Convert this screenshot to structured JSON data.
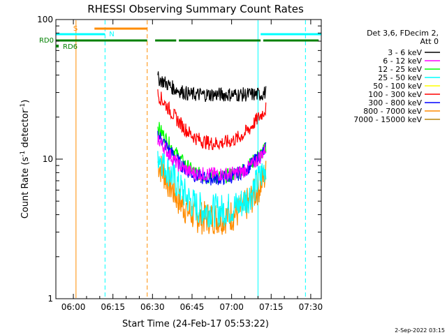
{
  "chart_data": {
    "type": "line",
    "title": "RHESSI Observing Summary Count Rates",
    "xlabel": "Start Time (24-Feb-17 05:53:22)",
    "ylabel_main": "Count Rate (s",
    "ylabel_sup1": "-1",
    "ylabel_mid": " detector",
    "ylabel_sup2": "-1",
    "ylabel_end": ")",
    "xlim": [
      "05:53:22",
      "07:34:00"
    ],
    "x_ticks": [
      "06:00",
      "06:15",
      "06:30",
      "06:45",
      "07:00",
      "07:15",
      "07:30"
    ],
    "y_scale": "log",
    "ylim": [
      1,
      100
    ],
    "y_ticks": [
      "1",
      "10",
      "100"
    ],
    "legend_header": [
      "Det 3,6, FDecim 2,",
      "Att 0"
    ],
    "series": [
      {
        "name": "3 - 6 keV",
        "color": "#000000",
        "start": "06:32",
        "end": "07:13",
        "values": [
          38,
          36,
          34,
          32,
          31,
          30,
          29,
          29,
          29,
          29,
          29,
          29,
          29,
          29,
          29,
          29,
          29,
          29,
          29,
          29,
          30
        ]
      },
      {
        "name": "6 - 12 keV",
        "color": "#ff00ff",
        "start": "06:32",
        "end": "07:13",
        "values": [
          14,
          12.5,
          11,
          9.8,
          9,
          8.5,
          8.1,
          7.9,
          7.8,
          7.8,
          7.8,
          7.8,
          7.8,
          7.8,
          7.9,
          8,
          8.3,
          8.8,
          9.5,
          10.5,
          12
        ]
      },
      {
        "name": "12 - 25 keV",
        "color": "#00ff00",
        "start": "06:32",
        "end": "07:13",
        "values": [
          17,
          15,
          13,
          11.5,
          10.2,
          9.2,
          8.5,
          8,
          7.7,
          7.5,
          7.5,
          7.5,
          7.5,
          7.6,
          7.8,
          8.1,
          8.5,
          9.1,
          9.9,
          10.8,
          12
        ]
      },
      {
        "name": "25 - 50 keV",
        "color": "#00ffff",
        "start": "06:32",
        "end": "07:13",
        "values": [
          11,
          9.5,
          8.3,
          7.2,
          6.3,
          5.6,
          5,
          4.6,
          4.4,
          4.3,
          4.3,
          4.3,
          4.3,
          4.4,
          4.5,
          4.7,
          5,
          5.5,
          6.3,
          7.5,
          9
        ]
      },
      {
        "name": "50 - 100 keV",
        "color": "#ffff00",
        "start": "06:32",
        "end": "07:13",
        "values": []
      },
      {
        "name": "100 - 300 keV",
        "color": "#ff0000",
        "start": "06:32",
        "end": "07:13",
        "values": [
          29,
          26,
          23,
          20.5,
          18.3,
          16.5,
          15.2,
          14.2,
          13.6,
          13.2,
          13,
          13,
          13.1,
          13.3,
          13.7,
          14.3,
          15.2,
          16.5,
          18.5,
          20.5,
          23
        ]
      },
      {
        "name": "300 - 800 keV",
        "color": "#0000ff",
        "start": "06:32",
        "end": "07:13",
        "values": [
          15,
          13.3,
          11.8,
          10.5,
          9.4,
          8.6,
          8,
          7.6,
          7.4,
          7.3,
          7.3,
          7.3,
          7.3,
          7.4,
          7.6,
          7.9,
          8.3,
          8.9,
          9.7,
          10.6,
          11.8
        ]
      },
      {
        "name": "800 - 7000 keV",
        "color": "#ff8c00",
        "start": "06:32",
        "end": "07:13",
        "values": [
          9.5,
          8,
          6.8,
          5.8,
          5,
          4.5,
          4.1,
          3.9,
          3.8,
          3.8,
          3.8,
          3.8,
          3.8,
          3.9,
          4,
          4.2,
          4.5,
          5,
          5.7,
          6.6,
          7.8
        ]
      },
      {
        "name": "7000 - 15000 keV",
        "color": "#b8860b",
        "start": "06:32",
        "end": "07:13",
        "values": []
      }
    ],
    "flags": [
      {
        "label": "S",
        "color": "#ff8c00",
        "segments": [
          [
            "06:08",
            "06:28"
          ]
        ]
      },
      {
        "label": "N",
        "color": "#00ffff",
        "segments": [
          [
            "05:53:22",
            "06:12"
          ],
          [
            "07:11",
            "07:34"
          ]
        ]
      },
      {
        "label": "RD0",
        "color": "#008000",
        "segments": [
          [
            "05:53:22",
            "06:28"
          ],
          [
            "06:31",
            "06:39"
          ],
          [
            "06:40",
            "07:11"
          ],
          [
            "07:12",
            "07:33"
          ]
        ]
      },
      {
        "label": "RD6",
        "color": "#008000",
        "segments": []
      }
    ],
    "vlines": [
      {
        "time": "05:53:22",
        "color": "#00ffff",
        "style": "solid"
      },
      {
        "time": "06:01",
        "color": "#ff8c00",
        "style": "solid"
      },
      {
        "time": "06:12",
        "color": "#00ffff",
        "style": "dashed"
      },
      {
        "time": "06:28",
        "color": "#ff8c00",
        "style": "dashed"
      },
      {
        "time": "07:10",
        "color": "#00ffff",
        "style": "solid"
      },
      {
        "time": "07:28",
        "color": "#00ffff",
        "style": "dashed"
      }
    ],
    "timestamp": "2-Sep-2022 03:15"
  }
}
